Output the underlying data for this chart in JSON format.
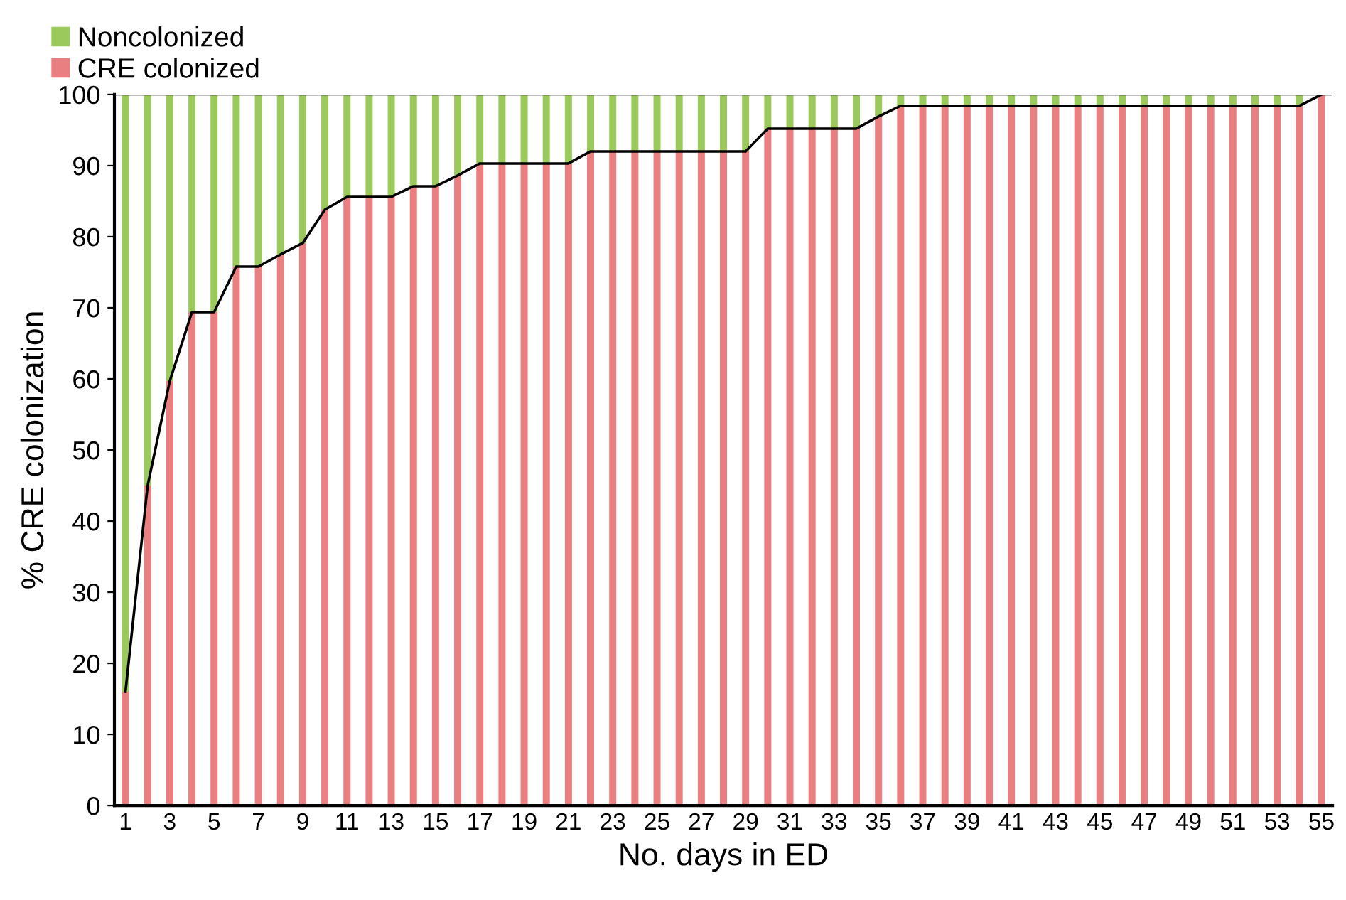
{
  "chart_data": {
    "type": "bar",
    "stacked": true,
    "xlabel": "No. days in ED",
    "ylabel": "% CRE colonization",
    "categories": [
      "1",
      null,
      "3",
      null,
      "5",
      null,
      "7",
      null,
      "9",
      null,
      "11",
      null,
      "13",
      null,
      "15",
      null,
      "17",
      null,
      "19",
      null,
      "21",
      null,
      "23",
      null,
      "25",
      null,
      "27",
      null,
      "29",
      null,
      "31",
      null,
      "33",
      null,
      "35",
      null,
      "37",
      null,
      "39",
      null,
      "41",
      null,
      "43",
      null,
      "45",
      null,
      "47",
      null,
      "49",
      null,
      "51",
      null,
      "53",
      null,
      "55"
    ],
    "series": [
      {
        "name": "CRE colonized",
        "color": "#e97f80",
        "values": [
          16,
          45,
          59.7,
          69.4,
          69.4,
          75.8,
          75.8,
          77.5,
          79.1,
          83.8,
          85.6,
          85.6,
          85.6,
          87.1,
          87.1,
          88.6,
          90.3,
          90.3,
          90.3,
          90.3,
          90.3,
          92,
          92,
          92,
          92,
          92,
          92,
          92,
          92,
          95.2,
          95.2,
          95.2,
          95.2,
          95.2,
          96.9,
          98.4,
          98.4,
          98.4,
          98.4,
          98.4,
          98.4,
          98.4,
          98.4,
          98.4,
          98.4,
          98.4,
          98.4,
          98.4,
          98.4,
          98.4,
          98.4,
          98.4,
          98.4,
          98.4,
          100
        ]
      },
      {
        "name": "Noncolonized",
        "color": "#9cc95c",
        "values": [
          84,
          55,
          40.3,
          30.6,
          30.6,
          24.2,
          24.2,
          22.5,
          20.9,
          16.2,
          14.4,
          14.4,
          14.4,
          12.9,
          12.9,
          11.4,
          9.7,
          9.7,
          9.7,
          9.7,
          9.7,
          8,
          8,
          8,
          8,
          8,
          8,
          8,
          8,
          4.8,
          4.8,
          4.8,
          4.8,
          4.8,
          3.1,
          1.6,
          1.6,
          1.6,
          1.6,
          1.6,
          1.6,
          1.6,
          1.6,
          1.6,
          1.6,
          1.6,
          1.6,
          1.6,
          1.6,
          1.6,
          1.6,
          1.6,
          1.6,
          1.6,
          0
        ]
      },
      {
        "type": "line",
        "color": "#000000",
        "values": [
          16,
          45,
          59.7,
          69.4,
          69.4,
          75.8,
          75.8,
          77.5,
          79.1,
          83.8,
          85.6,
          85.6,
          85.6,
          87.1,
          87.1,
          88.6,
          90.3,
          90.3,
          90.3,
          90.3,
          90.3,
          92,
          92,
          92,
          92,
          92,
          92,
          92,
          92,
          95.2,
          95.2,
          95.2,
          95.2,
          95.2,
          96.9,
          98.4,
          98.4,
          98.4,
          98.4,
          98.4,
          98.4,
          98.4,
          98.4,
          98.4,
          98.4,
          98.4,
          98.4,
          98.4,
          98.4,
          98.4,
          98.4,
          98.4,
          98.4,
          98.4,
          100
        ]
      }
    ],
    "ref_lines": [
      {
        "axis": "y",
        "value": 100,
        "color": "#000000"
      }
    ],
    "ylim": [
      0,
      100
    ],
    "yticks": [
      0,
      10,
      20,
      30,
      40,
      50,
      60,
      70,
      80,
      90,
      100
    ],
    "legend": "top left",
    "grid": false
  }
}
